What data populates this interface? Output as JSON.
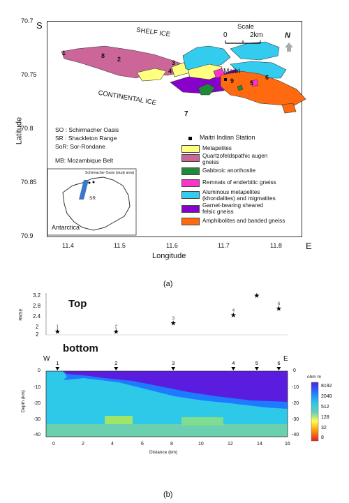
{
  "colors": {
    "metapelites": "#ffff80",
    "quartzofeldspathic": "#cc6699",
    "gabbroic": "#1f8a3a",
    "enderbitic": "#ff33cc",
    "aluminous": "#33ccee",
    "garnet": "#8800cc",
    "amphibolites": "#ff6a10",
    "inversion_purple": "#5a1de0",
    "inversion_blue": "#1e7bff",
    "inversion_cyan": "#2ec8e8",
    "inversion_teal": "#6ad0b0",
    "inversion_green": "#9ee56a"
  },
  "map": {
    "corner_label": "S",
    "y_axis_label": "Latitude",
    "x_axis_label": "Longitude",
    "x_ticks": [
      "11.4",
      "11.5",
      "11.6",
      "11.7",
      "11.8"
    ],
    "x_end_label": "E",
    "y_ticks": [
      "70.7",
      "70.75",
      "70.8",
      "70.85",
      "70.9"
    ],
    "shelf_ice": "SHELF ICE",
    "continental_ice": "CONTINENTAL ICE",
    "scale_title": "Scale",
    "scale_zero": "0",
    "scale_km": "2km",
    "north": "N",
    "maitri": "Maitri",
    "site_numbers": [
      "1",
      "8",
      "2",
      "3",
      "9",
      "5",
      "6",
      "7",
      "4"
    ],
    "abbreviations": [
      "SO : Schirmacher Oasis",
      "SR : Shackleton Range",
      "SoR: Sor-Rondane",
      "MB: Mozambique Belt"
    ],
    "inset": {
      "label": "Antarctica",
      "study_area": "Schirmacher Oasis (study area)",
      "sr": "SR"
    },
    "legend": [
      {
        "key": "station",
        "label": "Maitri Indian Station"
      },
      {
        "key": "metapelites",
        "label": "Metapelites"
      },
      {
        "key": "quartzofeldspathic",
        "label": "Quartzofeldspathic augen gneiss"
      },
      {
        "key": "gabbroic",
        "label": "Gabbroic anorthosite"
      },
      {
        "key": "enderbitic",
        "label": "Remnats of enderbitic gneiss"
      },
      {
        "key": "aluminous",
        "label": "Aluminous metapelites (khondalites) and migmatites"
      },
      {
        "key": "garnet",
        "label": "Garnet-bearing sheared felsic gneiss"
      },
      {
        "key": "amphibolites",
        "label": "Amphibolites and banded gneiss"
      }
    ],
    "caption": "(a)"
  },
  "rmse_panel": {
    "y_label": "RMSE",
    "y_ticks": [
      "3.2",
      "2.8",
      "2.4",
      "2",
      "2"
    ],
    "top_label": "Top",
    "bottom_label": "bottom",
    "points": [
      {
        "site": "1",
        "rmse": 2.1
      },
      {
        "site": "2",
        "rmse": 2.1
      },
      {
        "site": "3",
        "rmse": 2.35
      },
      {
        "site": "4",
        "rmse": 2.6
      },
      {
        "site": "5",
        "rmse": 3.2
      },
      {
        "site": "6",
        "rmse": 2.8
      }
    ]
  },
  "section": {
    "west": "W",
    "east": "E",
    "y_label": "Depth (km)",
    "x_label": "Distance (km)",
    "x_ticks": [
      "0",
      "2",
      "4",
      "6",
      "8",
      "10",
      "12",
      "14",
      "16"
    ],
    "y_ticks_left": [
      "0",
      "-10",
      "-20",
      "-30",
      "-40"
    ],
    "y_ticks_right": [
      "0",
      "-10",
      "-20",
      "-30",
      "-40"
    ],
    "sites": [
      {
        "label": "1",
        "distance_km": 0.3
      },
      {
        "label": "2",
        "distance_km": 4.3
      },
      {
        "label": "3",
        "distance_km": 8.2
      },
      {
        "label": "4",
        "distance_km": 12.3
      },
      {
        "label": "5",
        "distance_km": 13.9
      },
      {
        "label": "6",
        "distance_km": 15.4
      }
    ],
    "colorbar_unit": "ohm m",
    "colorbar_ticks": [
      "8192",
      "2048",
      "512",
      "128",
      "32",
      "8"
    ],
    "caption": "(b)"
  }
}
